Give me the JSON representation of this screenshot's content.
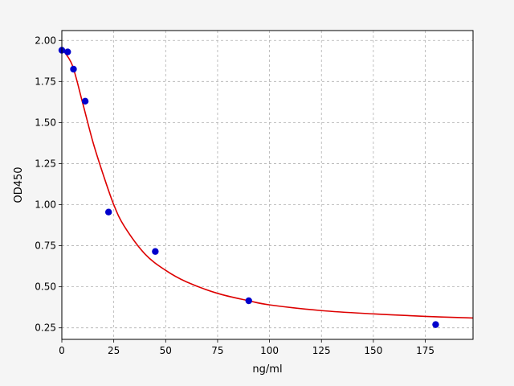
{
  "chart_data": {
    "type": "scatter",
    "title": "",
    "xlabel": "ng/ml",
    "ylabel": "OD450",
    "xlim": [
      0,
      198
    ],
    "ylim": [
      0.18,
      2.06
    ],
    "xticks": [
      0,
      25,
      50,
      75,
      100,
      125,
      150,
      175
    ],
    "yticks": [
      0.25,
      0.5,
      0.75,
      1.0,
      1.25,
      1.5,
      1.75,
      2.0
    ],
    "xtick_labels": [
      "0",
      "25",
      "50",
      "75",
      "100",
      "125",
      "150",
      "175"
    ],
    "ytick_labels": [
      "0.25",
      "0.50",
      "0.75",
      "1.00",
      "1.25",
      "1.50",
      "1.75",
      "2.00"
    ],
    "grid": true,
    "grid_style": "dashed",
    "series": [
      {
        "kind": "points",
        "color": "#0000cc",
        "x": [
          0,
          2.8,
          5.6,
          11.25,
          22.5,
          45,
          90,
          180
        ],
        "y": [
          1.94,
          1.93,
          1.825,
          1.63,
          0.955,
          0.715,
          0.415,
          0.27
        ]
      },
      {
        "kind": "fit-curve",
        "color": "#dd0000",
        "x": [
          0,
          5,
          10,
          15,
          20,
          25,
          30,
          40,
          50,
          60,
          75,
          90,
          100,
          125,
          150,
          175,
          198
        ],
        "y": [
          1.95,
          1.85,
          1.62,
          1.38,
          1.18,
          1.0,
          0.87,
          0.7,
          0.6,
          0.53,
          0.46,
          0.415,
          0.39,
          0.355,
          0.335,
          0.32,
          0.31
        ]
      }
    ]
  }
}
